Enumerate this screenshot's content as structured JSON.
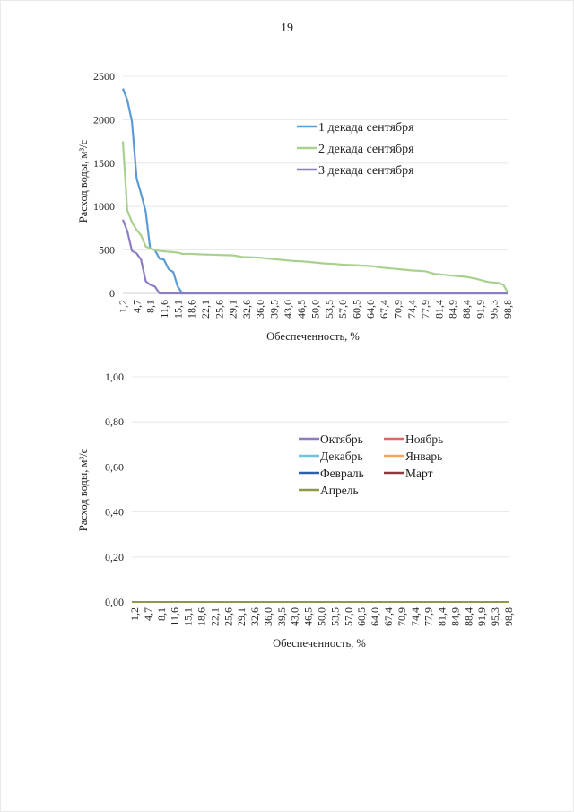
{
  "page": {
    "number": "19"
  },
  "chart_data": [
    {
      "type": "line",
      "title": "",
      "xlabel": "Обеспеченность, %",
      "ylabel": "Расход воды, м³/с",
      "ylim": [
        0,
        2500
      ],
      "yticks": [
        "0",
        "500",
        "1000",
        "1500",
        "2000",
        "2500"
      ],
      "ytick_values": [
        0,
        500,
        1000,
        1500,
        2000,
        2500
      ],
      "x": [
        1.2,
        2.3,
        3.5,
        4.7,
        5.8,
        7.0,
        8.1,
        9.3,
        10.5,
        11.6,
        12.8,
        14.0,
        15.1,
        16.3,
        17.4,
        18.6,
        19.8,
        20.9,
        22.1,
        23.3,
        24.4,
        25.6,
        26.7,
        27.9,
        29.1,
        30.2,
        31.4,
        32.6,
        33.7,
        34.9,
        36.0,
        37.2,
        38.4,
        39.5,
        40.7,
        41.9,
        43.0,
        44.2,
        45.3,
        46.5,
        47.7,
        48.8,
        50.0,
        51.2,
        52.3,
        53.5,
        54.7,
        55.8,
        57.0,
        58.1,
        59.3,
        60.5,
        61.6,
        62.8,
        64.0,
        65.1,
        66.3,
        67.4,
        68.6,
        69.8,
        70.9,
        72.1,
        73.3,
        74.4,
        75.6,
        76.7,
        77.9,
        79.1,
        80.2,
        81.4,
        82.6,
        83.7,
        84.9,
        86.0,
        87.2,
        88.4,
        89.5,
        90.7,
        91.9,
        93.0,
        94.2,
        95.3,
        96.5,
        97.7,
        98.8
      ],
      "xtick_labels": [
        "1,2",
        "4,7",
        "8,1",
        "11,6",
        "15,1",
        "18,6",
        "22,1",
        "25,6",
        "29,1",
        "32,6",
        "36,0",
        "39,5",
        "43,0",
        "46,5",
        "50,0",
        "53,5",
        "57,0",
        "60,5",
        "64,0",
        "67,4",
        "70,9",
        "74,4",
        "77,9",
        "81,4",
        "84,9",
        "88,4",
        "91,9",
        "95,3",
        "98,8"
      ],
      "legend_position": "right",
      "grid": true,
      "series": [
        {
          "name": "1 декада сентября",
          "color": "#5B9BD5",
          "values": [
            2360,
            2230,
            1980,
            1320,
            1150,
            940,
            520,
            500,
            400,
            390,
            280,
            245,
            80,
            0,
            0,
            0,
            0,
            0,
            0,
            0,
            0,
            0,
            0,
            0,
            0,
            0,
            0,
            0,
            0,
            0,
            0,
            0,
            0,
            0,
            0,
            0,
            0,
            0,
            0,
            0,
            0,
            0,
            0,
            0,
            0,
            0,
            0,
            0,
            0,
            0,
            0,
            0,
            0,
            0,
            0,
            0,
            0,
            0,
            0,
            0,
            0,
            0,
            0,
            0,
            0,
            0,
            0,
            0,
            0,
            0,
            0,
            0,
            0,
            0,
            0,
            0,
            0,
            0,
            0,
            0,
            0,
            0,
            0,
            0,
            0
          ]
        },
        {
          "name": "2 декада сентября",
          "color": "#A9D18E",
          "values": [
            1750,
            960,
            820,
            730,
            670,
            540,
            520,
            500,
            490,
            485,
            480,
            475,
            470,
            455,
            455,
            455,
            452,
            450,
            448,
            446,
            445,
            443,
            441,
            440,
            438,
            430,
            420,
            418,
            416,
            414,
            412,
            405,
            400,
            395,
            390,
            385,
            380,
            375,
            372,
            370,
            365,
            360,
            355,
            350,
            345,
            342,
            340,
            335,
            330,
            328,
            326,
            324,
            320,
            318,
            315,
            310,
            300,
            295,
            290,
            285,
            280,
            275,
            270,
            265,
            262,
            258,
            255,
            240,
            225,
            220,
            215,
            210,
            205,
            200,
            195,
            190,
            180,
            170,
            155,
            140,
            130,
            125,
            120,
            100,
            15
          ]
        },
        {
          "name": "3 декада сентября",
          "color": "#8E7CC3",
          "values": [
            850,
            720,
            490,
            460,
            390,
            140,
            100,
            80,
            0,
            0,
            0,
            0,
            0,
            0,
            0,
            0,
            0,
            0,
            0,
            0,
            0,
            0,
            0,
            0,
            0,
            0,
            0,
            0,
            0,
            0,
            0,
            0,
            0,
            0,
            0,
            0,
            0,
            0,
            0,
            0,
            0,
            0,
            0,
            0,
            0,
            0,
            0,
            0,
            0,
            0,
            0,
            0,
            0,
            0,
            0,
            0,
            0,
            0,
            0,
            0,
            0,
            0,
            0,
            0,
            0,
            0,
            0,
            0,
            0,
            0,
            0,
            0,
            0,
            0,
            0,
            0,
            0,
            0,
            0,
            0,
            0,
            0,
            0,
            0,
            0
          ]
        }
      ]
    },
    {
      "type": "line",
      "title": "",
      "xlabel": "Обеспеченность, %",
      "ylabel": "Расход воды, м³/с",
      "ylim": [
        0,
        1
      ],
      "yticks": [
        "0,00",
        "0,20",
        "0,40",
        "0,60",
        "0,80",
        "1,00"
      ],
      "ytick_values": [
        0,
        0.2,
        0.4,
        0.6,
        0.8,
        1.0
      ],
      "xtick_labels": [
        "1,2",
        "4,7",
        "8,1",
        "11,6",
        "15,1",
        "18,6",
        "22,1",
        "25,6",
        "29,1",
        "32,6",
        "36,0",
        "39,5",
        "43,0",
        "46,5",
        "50,0",
        "53,5",
        "57,0",
        "60,5",
        "64,0",
        "67,4",
        "70,9",
        "74,4",
        "77,9",
        "81,4",
        "84,9",
        "88,4",
        "91,9",
        "95,3",
        "98,8"
      ],
      "legend_position": "right",
      "grid": true,
      "series": [
        {
          "name": "Октябрь",
          "color": "#8E7CC3",
          "value": 0
        },
        {
          "name": "Ноябрь",
          "color": "#E06666",
          "value": 0
        },
        {
          "name": "Декабрь",
          "color": "#6FC3DF",
          "value": 0
        },
        {
          "name": "Январь",
          "color": "#F4A460",
          "value": 0
        },
        {
          "name": "Февраль",
          "color": "#2E5FA8",
          "value": 0
        },
        {
          "name": "Март",
          "color": "#8B3A3A",
          "value": 0
        },
        {
          "name": "Апрель",
          "color": "#8A9A4A",
          "value": 0
        }
      ]
    }
  ]
}
